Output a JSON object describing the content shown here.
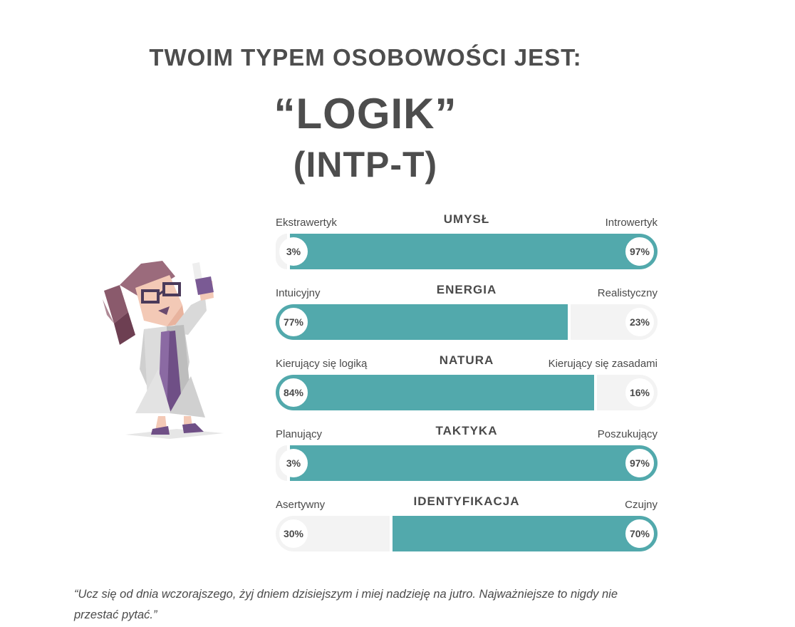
{
  "header": {
    "intro": "TWOIM TYPEM OSOBOWOŚCI JEST:",
    "type_name": "“LOGIK”",
    "type_code": "(INTP-T)"
  },
  "colors": {
    "accent": "#52a9ac",
    "track": "#f3f3f3",
    "text": "#4a4a4a"
  },
  "scales": [
    {
      "title": "UMYSŁ",
      "left_label": "Ekstrawertyk",
      "right_label": "Introwertyk",
      "left_value": 3,
      "right_value": 97,
      "left_pct": "3%",
      "right_pct": "97%"
    },
    {
      "title": "ENERGIA",
      "left_label": "Intuicyjny",
      "right_label": "Realistyczny",
      "left_value": 77,
      "right_value": 23,
      "left_pct": "77%",
      "right_pct": "23%"
    },
    {
      "title": "NATURA",
      "left_label": "Kierujący się logiką",
      "right_label": "Kierujący się zasadami",
      "left_value": 84,
      "right_value": 16,
      "left_pct": "84%",
      "right_pct": "16%"
    },
    {
      "title": "TAKTYKA",
      "left_label": "Planujący",
      "right_label": "Poszukujący",
      "left_value": 3,
      "right_value": 97,
      "left_pct": "3%",
      "right_pct": "97%"
    },
    {
      "title": "IDENTYFIKACJA",
      "left_label": "Asertywny",
      "right_label": "Czujny",
      "left_value": 30,
      "right_value": 70,
      "left_pct": "30%",
      "right_pct": "70%"
    }
  ],
  "quote": "“Ucz się od dnia wczorajszego, żyj dniem dzisiejszym i miej nadzieję na jutro. Najważniejsze to nigdy nie przestać pytać.”",
  "illustration": {
    "icon": "scientist-illustration-icon"
  }
}
